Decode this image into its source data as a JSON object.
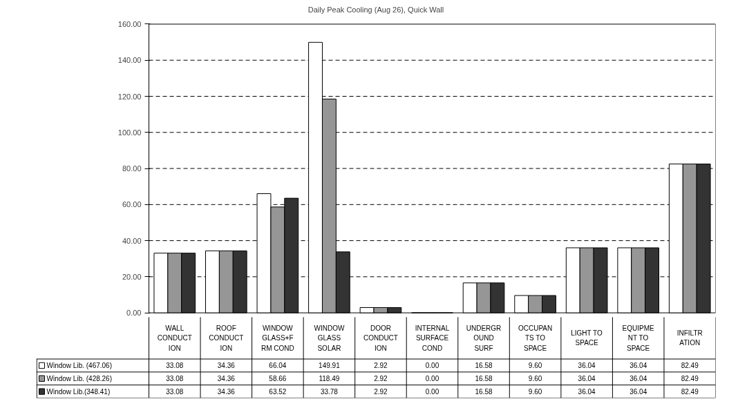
{
  "chart_data": {
    "type": "bar",
    "title": "Daily Peak Cooling (Aug 26), Quick Wall",
    "categories": [
      "WALL CONDUCTION",
      "ROOF CONDUCTION",
      "WINDOW GLASS+FRM COND",
      "WINDOW GLASS SOLAR",
      "DOOR CONDUCTION",
      "INTERNAL SURFACE COND",
      "UNDERGROUND SURF",
      "OCCUPANTS TO SPACE",
      "LIGHT TO SPACE",
      "EQUIPMENT TO SPACE",
      "INFILTRATION"
    ],
    "series": [
      {
        "name": "Window Lib. (467.06)",
        "color": "#ffffff",
        "values": [
          33.08,
          34.36,
          66.04,
          149.91,
          2.92,
          0.0,
          16.58,
          9.6,
          36.04,
          36.04,
          82.49
        ],
        "value_labels": [
          "33.08",
          "34.36",
          "66.04",
          "149.91",
          "2.92",
          "0.00",
          "16.58",
          "9.60",
          "36.04",
          "36.04",
          "82.49"
        ]
      },
      {
        "name": "Window Lib. (428.26)",
        "color": "#969696",
        "values": [
          33.08,
          34.36,
          58.66,
          118.49,
          2.92,
          0.0,
          16.58,
          9.6,
          36.04,
          36.04,
          82.49
        ],
        "value_labels": [
          "33.08",
          "34.36",
          "58.66",
          "118.49",
          "2.92",
          "0.00",
          "16.58",
          "9.60",
          "36.04",
          "36.04",
          "82.49"
        ]
      },
      {
        "name": "Window Lib.(348.41)",
        "color": "#333333",
        "values": [
          33.08,
          34.36,
          63.52,
          33.78,
          2.92,
          0.0,
          16.58,
          9.6,
          36.04,
          36.04,
          82.49
        ],
        "value_labels": [
          "33.08",
          "34.36",
          "63.52",
          "33.78",
          "2.92",
          "0.00",
          "16.58",
          "9.60",
          "36.04",
          "36.04",
          "82.49"
        ]
      }
    ],
    "ylim": [
      0,
      160
    ],
    "yticks": [
      {
        "value": 0,
        "label": "0.00"
      },
      {
        "value": 20,
        "label": "20.00"
      },
      {
        "value": 40,
        "label": "40.00"
      },
      {
        "value": 60,
        "label": "60.00"
      },
      {
        "value": 80,
        "label": "80.00"
      },
      {
        "value": 100,
        "label": "100.00"
      },
      {
        "value": 120,
        "label": "120.00"
      },
      {
        "value": 140,
        "label": "140.00"
      },
      {
        "value": 160,
        "label": "160.00"
      }
    ],
    "grid": "y",
    "line_style": "dashed",
    "legend": "bottom"
  }
}
